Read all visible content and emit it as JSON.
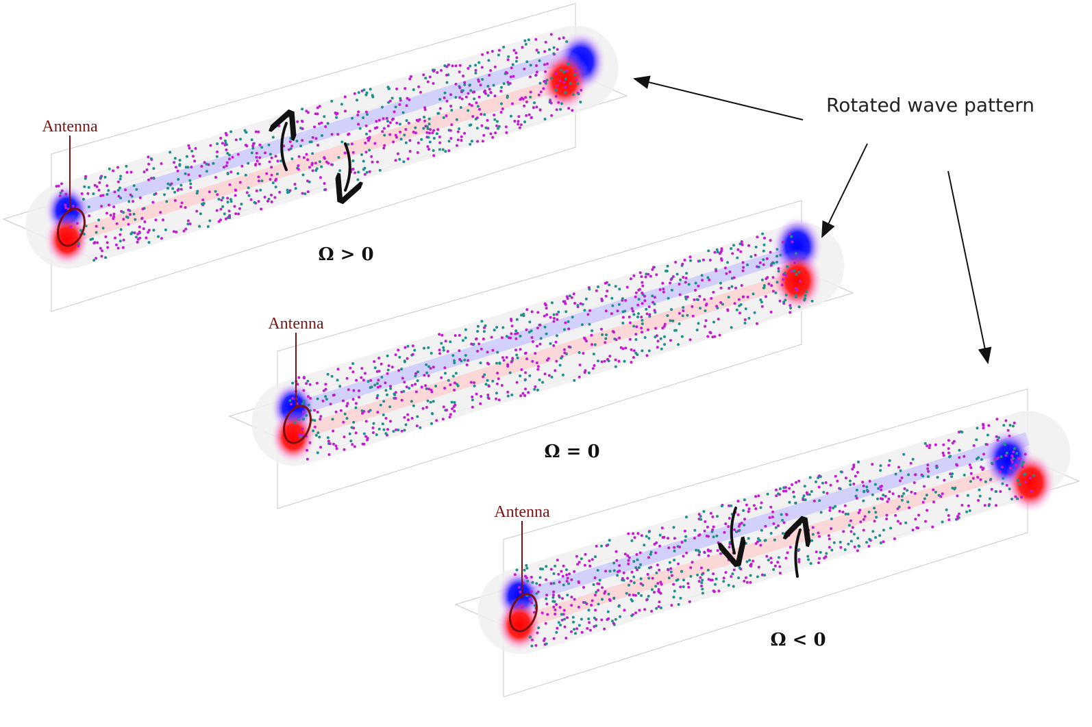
{
  "annotation": "Rotated wave pattern",
  "panels": [
    {
      "antenna_label": "Antenna",
      "omega_label": "Ω > 0"
    },
    {
      "antenna_label": "Antenna",
      "omega_label": "Ω = 0"
    },
    {
      "antenna_label": "Antenna",
      "omega_label": "Ω < 0"
    }
  ]
}
